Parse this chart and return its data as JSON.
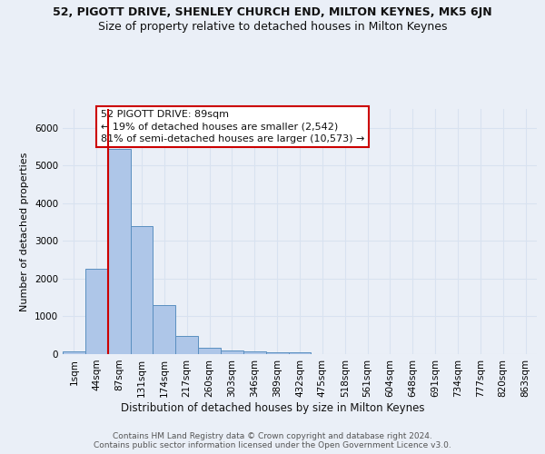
{
  "title": "52, PIGOTT DRIVE, SHENLEY CHURCH END, MILTON KEYNES, MK5 6JN",
  "subtitle": "Size of property relative to detached houses in Milton Keynes",
  "xlabel": "Distribution of detached houses by size in Milton Keynes",
  "ylabel": "Number of detached properties",
  "footer_line1": "Contains HM Land Registry data © Crown copyright and database right 2024.",
  "footer_line2": "Contains public sector information licensed under the Open Government Licence v3.0.",
  "categories": [
    "1sqm",
    "44sqm",
    "87sqm",
    "131sqm",
    "174sqm",
    "217sqm",
    "260sqm",
    "303sqm",
    "346sqm",
    "389sqm",
    "432sqm",
    "475sqm",
    "518sqm",
    "561sqm",
    "604sqm",
    "648sqm",
    "691sqm",
    "734sqm",
    "777sqm",
    "820sqm",
    "863sqm"
  ],
  "bar_values": [
    75,
    2270,
    5430,
    3390,
    1290,
    475,
    165,
    90,
    75,
    55,
    40,
    0,
    0,
    0,
    0,
    0,
    0,
    0,
    0,
    0,
    0
  ],
  "bar_color": "#aec6e8",
  "bar_edgecolor": "#5a8fc0",
  "highlight_line_color": "#cc0000",
  "red_line_x": 1.5,
  "annotation_line1": "52 PIGOTT DRIVE: 89sqm",
  "annotation_line2": "← 19% of detached houses are smaller (2,542)",
  "annotation_line3": "81% of semi-detached houses are larger (10,573) →",
  "annotation_box_facecolor": "#ffffff",
  "annotation_box_edgecolor": "#cc0000",
  "ylim": [
    0,
    6500
  ],
  "bg_color": "#eaeff7",
  "grid_color": "#d8e2f0",
  "title_fontsize": 9,
  "subtitle_fontsize": 9,
  "ylabel_fontsize": 8,
  "xlabel_fontsize": 8.5,
  "tick_fontsize": 7.5,
  "footer_fontsize": 6.5
}
